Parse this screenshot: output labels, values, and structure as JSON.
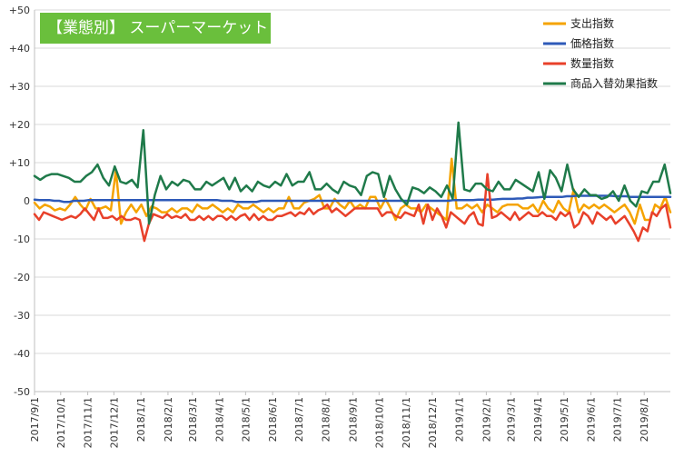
{
  "chart_data": {
    "type": "line",
    "title": "【業態別】 スーパーマーケット",
    "xlabel": "",
    "ylabel": "",
    "ylim": [
      -50,
      50
    ],
    "yticks": [
      {
        "value": 50,
        "label": "+50"
      },
      {
        "value": 40,
        "label": "+40"
      },
      {
        "value": 30,
        "label": "+30"
      },
      {
        "value": 20,
        "label": "+20"
      },
      {
        "value": 10,
        "label": "+10"
      },
      {
        "value": 0,
        "label": "0"
      },
      {
        "value": -10,
        "label": "-10"
      },
      {
        "value": -20,
        "label": "-20"
      },
      {
        "value": -30,
        "label": "-30"
      },
      {
        "value": -40,
        "label": "-40"
      },
      {
        "value": -50,
        "label": "-50"
      }
    ],
    "x_start_date": "2017-09-01",
    "x_end_date": "2019-08-31",
    "x_tick_labels": [
      "2017/9/1",
      "2017/10/1",
      "2017/11/1",
      "2017/12/1",
      "2018/1/1",
      "2018/2/1",
      "2018/3/1",
      "2018/4/1",
      "2018/5/1",
      "2018/6/1",
      "2018/7/1",
      "2018/8/1",
      "2018/9/1",
      "2018/10/1",
      "2018/11/1",
      "2018/12/1",
      "2019/1/1",
      "2019/2/1",
      "2019/3/1",
      "2019/4/1",
      "2019/5/1",
      "2019/6/1",
      "2019/7/1",
      "2019/8/1"
    ],
    "legend_position": "top-right",
    "grid": "horizontal",
    "series": [
      {
        "name": "支出指数",
        "color": "#f5a300",
        "values": [
          -0.5,
          -2,
          -1,
          -1.5,
          -2.5,
          -2,
          -2.5,
          -1,
          1,
          -1,
          -2.5,
          0.5,
          -2,
          -2,
          -1.5,
          -2.5,
          8,
          -6,
          -3,
          -1,
          -3,
          -1,
          -4,
          -1.5,
          -2,
          -3,
          -3,
          -2,
          -3,
          -2,
          -2,
          -3,
          -1,
          -2,
          -2,
          -1,
          -2,
          -3,
          -2,
          -3,
          -1,
          -2,
          -2,
          -1,
          -2,
          -3,
          -2,
          -3,
          -2,
          -2,
          1,
          -2,
          -2,
          -0.5,
          0,
          0.5,
          1.5,
          -2,
          -2,
          0.5,
          -1,
          -2,
          0,
          -2,
          -1,
          -2,
          1,
          1,
          -2,
          0.5,
          -2,
          -5,
          -2,
          -1,
          -2,
          -2,
          -3,
          -1,
          -2,
          -3,
          -4,
          -5,
          11,
          -2,
          -2,
          -1,
          -2,
          -1,
          -3,
          -1,
          -2,
          -3,
          -1.5,
          -1,
          -1,
          -1,
          -2,
          -2,
          -1,
          -3,
          0,
          -2,
          -3,
          0,
          -2,
          -3,
          3,
          -3,
          -1,
          -2,
          -1,
          -2,
          -1,
          -2,
          -3,
          -2,
          -1,
          -3,
          -6,
          -1,
          -5,
          -5,
          -1,
          -2,
          1,
          -3
        ]
      },
      {
        "name": "価格指数",
        "color": "#2e5ab8",
        "values": [
          0.3,
          0.2,
          0.2,
          0.2,
          0,
          0,
          -0.3,
          -0.3,
          0,
          0,
          0,
          0.2,
          0.2,
          0.2,
          0.2,
          0.2,
          0.2,
          0.2,
          0.2,
          0.2,
          0.2,
          0.2,
          0.2,
          0.2,
          0.2,
          0.2,
          0.2,
          0.2,
          0.2,
          0.2,
          0.2,
          0.2,
          0.2,
          0.2,
          0.2,
          0.2,
          0.2,
          0.2,
          0,
          0,
          0,
          -0.3,
          -0.3,
          -0.3,
          -0.3,
          -0.3,
          0,
          0,
          0,
          0,
          0,
          0,
          0,
          0,
          0,
          0,
          0,
          0,
          0,
          0,
          0,
          0,
          0,
          0,
          0,
          0,
          0,
          0,
          0,
          0,
          0,
          0,
          0,
          0,
          0,
          0,
          0,
          0,
          0,
          0,
          0,
          0,
          0,
          0,
          0,
          0.2,
          0.2,
          0.2,
          0.2,
          0.2,
          0.3,
          0.3,
          0.3,
          0.3,
          0.4,
          0.5,
          0.5,
          0.5,
          0.6,
          0.6,
          0.8,
          0.8,
          0.9,
          1,
          1,
          1,
          1,
          1,
          1.2,
          1.2,
          1.3,
          1.3,
          1.3,
          1.3,
          1.3,
          1.3,
          1.3,
          1.3,
          1.2,
          1.2,
          1.2,
          1,
          1,
          1,
          1,
          1,
          1,
          1,
          1,
          1
        ]
      },
      {
        "name": "数量指数",
        "color": "#e8402a",
        "values": [
          -3.5,
          -5,
          -3,
          -3.5,
          -4,
          -4.5,
          -5,
          -4.5,
          -4,
          -4.5,
          -3.5,
          -2,
          -3.5,
          -5,
          -2,
          -4.5,
          -4.5,
          -4,
          -5,
          -4,
          -5,
          -5,
          -4.5,
          -5,
          -10.5,
          -6,
          -3.5,
          -4,
          -4.5,
          -3.5,
          -4.5,
          -4,
          -4.5,
          -3.5,
          -5,
          -5,
          -4,
          -5,
          -4,
          -5,
          -4,
          -4,
          -5,
          -4,
          -5,
          -4,
          -3.5,
          -5,
          -3.5,
          -5,
          -4,
          -5,
          -5,
          -4,
          -4,
          -3.5,
          -3,
          -4,
          -3,
          -3.5,
          -2,
          -3.5,
          -2.5,
          -2,
          -1,
          -3,
          -2,
          -3,
          -4,
          -3,
          -2,
          -2,
          -2,
          -2,
          -2,
          -2,
          -4,
          -3,
          -3,
          -4,
          -4.5,
          -3,
          -3.5,
          -4,
          -1,
          -6,
          -1,
          -5,
          -2,
          -4,
          -7,
          -3,
          -4,
          -5,
          -6,
          -4,
          -3,
          -6,
          -6.5,
          7,
          -4.5,
          -4,
          -3,
          -4,
          -5,
          -3,
          -5,
          -4,
          -3,
          -4,
          -4,
          -3,
          -4,
          -4,
          -5,
          -3,
          -4,
          -3,
          -7,
          -6,
          -3,
          -4,
          -6,
          -3,
          -4,
          -5,
          -4,
          -6,
          -5,
          -4,
          -6,
          -8,
          -10.5,
          -7,
          -8,
          -3,
          -4,
          -2,
          -1,
          -7
        ]
      },
      {
        "name": "商品入替効果指数",
        "color": "#1f7a4a",
        "values": [
          6.5,
          5.5,
          6.5,
          7,
          7,
          6.5,
          6,
          5,
          5,
          6.5,
          7.5,
          9.5,
          6,
          4,
          9,
          5,
          4.5,
          5.5,
          3.5,
          18.5,
          -6,
          1.5,
          6.5,
          3,
          5,
          4,
          5.5,
          5,
          3,
          3,
          5,
          4,
          5,
          6,
          3,
          6,
          2.5,
          4,
          2.5,
          5,
          4,
          3.5,
          5,
          4,
          7,
          4,
          5,
          5,
          7.5,
          3,
          3,
          4.5,
          3,
          2,
          5,
          4,
          3.5,
          1.5,
          6.5,
          7.5,
          7,
          1,
          6.5,
          3,
          0.5,
          -1,
          3.5,
          3,
          2,
          3.5,
          2.5,
          1,
          4,
          0.5,
          20.5,
          3,
          2.5,
          4.5,
          4.5,
          3,
          2.5,
          5,
          3,
          3,
          5.5,
          4.5,
          3.5,
          2.5,
          7.5,
          0.5,
          8,
          6,
          2.5,
          9.5,
          3,
          1,
          3,
          1.5,
          1.5,
          0.5,
          1,
          2.5,
          0,
          4,
          0,
          -1.5,
          2.5,
          2,
          5,
          5,
          9.5,
          2
        ]
      }
    ]
  }
}
